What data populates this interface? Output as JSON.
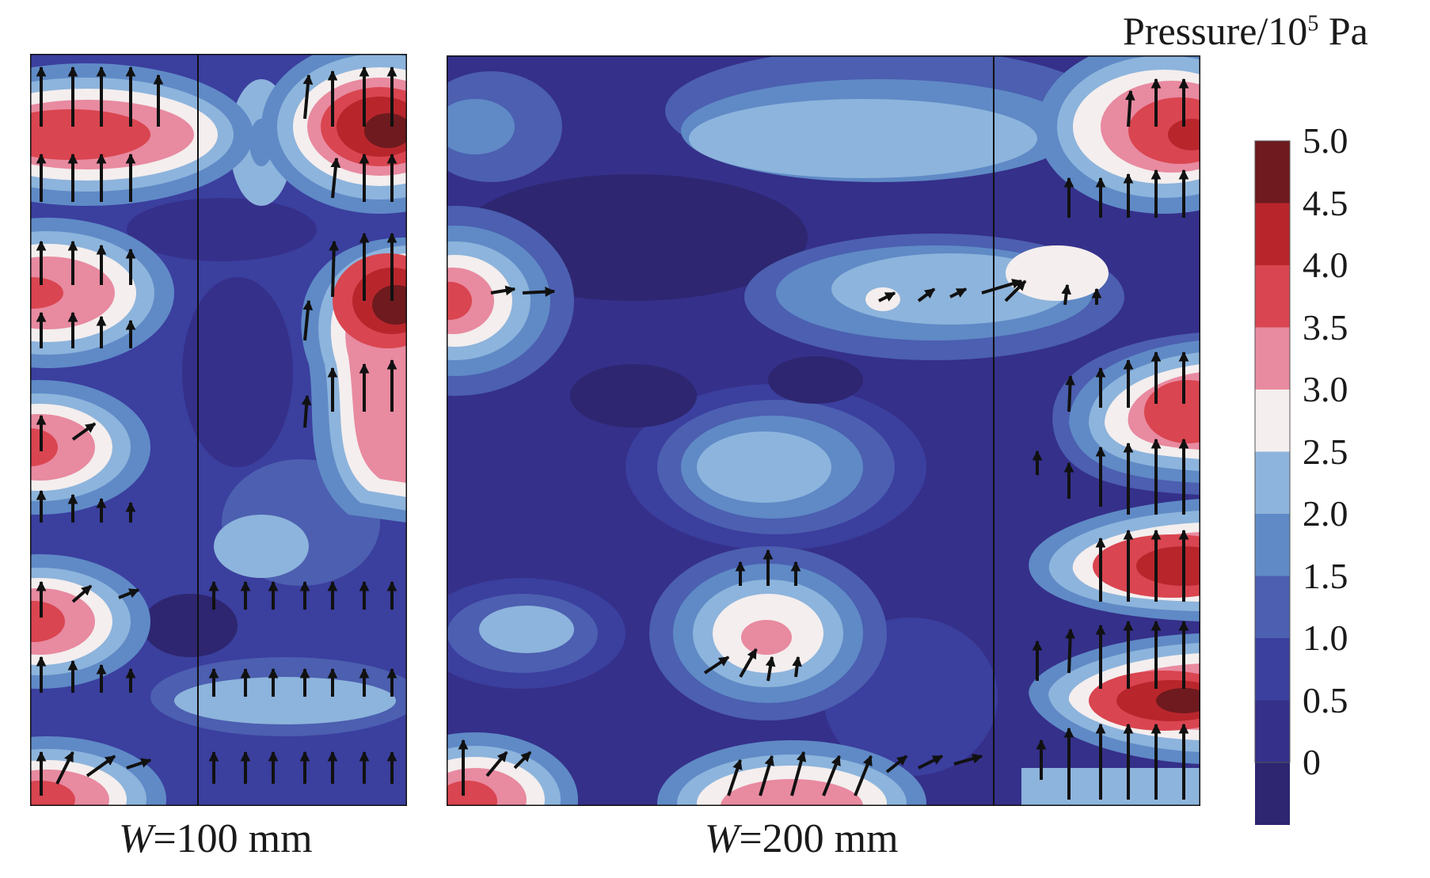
{
  "panels": [
    {
      "label_var": "W",
      "label_rest": "=100 mm"
    },
    {
      "label_var": "W",
      "label_rest": "=200 mm"
    }
  ],
  "colorbar": {
    "title_prefix": "Pressure/10",
    "title_exp": "5",
    "title_suffix": " Pa",
    "ticks": [
      "5.0",
      "4.5",
      "4.0",
      "3.5",
      "3.0",
      "2.5",
      "2.0",
      "1.5",
      "1.0",
      "0.5",
      "0"
    ],
    "colors": [
      "#6e1a1e",
      "#b8262c",
      "#d94550",
      "#e88aa0",
      "#f4eeee",
      "#8db4dc",
      "#5f8ac6",
      "#4c5fb0",
      "#3b3f9e",
      "#35308a",
      "#2e2670"
    ]
  }
}
